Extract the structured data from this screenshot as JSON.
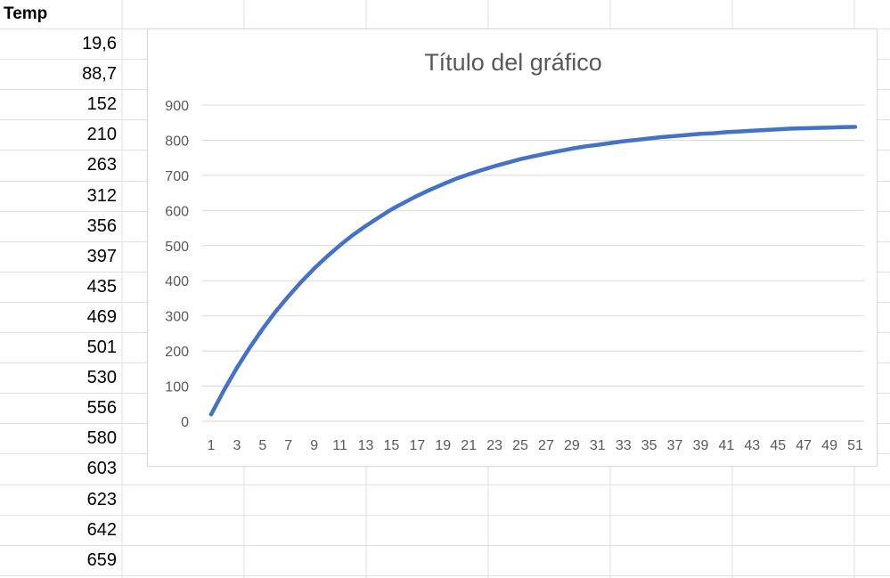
{
  "sheet": {
    "header": "Temp",
    "values": [
      "19,6",
      "88,7",
      "152",
      "210",
      "263",
      "312",
      "356",
      "397",
      "435",
      "469",
      "501",
      "530",
      "556",
      "580",
      "603",
      "623",
      "642",
      "659"
    ]
  },
  "colors": {
    "line": "#4472c4",
    "grid": "#d9d9d9",
    "text": "#595959"
  },
  "chart_data": {
    "type": "line",
    "title": "Título del gráfico",
    "xlabel": "",
    "ylabel": "",
    "ylim": [
      0,
      900
    ],
    "yticks": [
      "0",
      "100",
      "200",
      "300",
      "400",
      "500",
      "600",
      "700",
      "800",
      "900"
    ],
    "xticks": [
      "1",
      "3",
      "5",
      "7",
      "9",
      "11",
      "13",
      "15",
      "17",
      "19",
      "21",
      "23",
      "25",
      "27",
      "29",
      "31",
      "33",
      "35",
      "37",
      "39",
      "41",
      "43",
      "45",
      "47",
      "49",
      "51"
    ],
    "grid": true,
    "legend": "none",
    "series": [
      {
        "x": [
          1,
          2,
          3,
          4,
          5,
          6,
          7,
          8,
          9,
          10,
          11,
          12,
          13,
          14,
          15,
          16,
          17,
          18,
          19,
          20,
          21,
          22,
          23,
          24,
          25,
          26,
          27,
          28,
          29,
          30,
          31,
          32,
          33,
          34,
          35,
          36,
          37,
          38,
          39,
          40,
          41,
          42,
          43,
          44,
          45,
          46,
          47,
          48,
          49,
          50,
          51
        ],
        "values": [
          19.6,
          88.7,
          152,
          210,
          263,
          312,
          356,
          397,
          435,
          469,
          501,
          530,
          556,
          580,
          603,
          623,
          642,
          659,
          675,
          690,
          703,
          715,
          726,
          736,
          746,
          754,
          762,
          769,
          776,
          782,
          787,
          792,
          797,
          801,
          805,
          809,
          812,
          815,
          818,
          820,
          823,
          825,
          827,
          829,
          831,
          833,
          834,
          835,
          836,
          837,
          838
        ]
      }
    ]
  }
}
